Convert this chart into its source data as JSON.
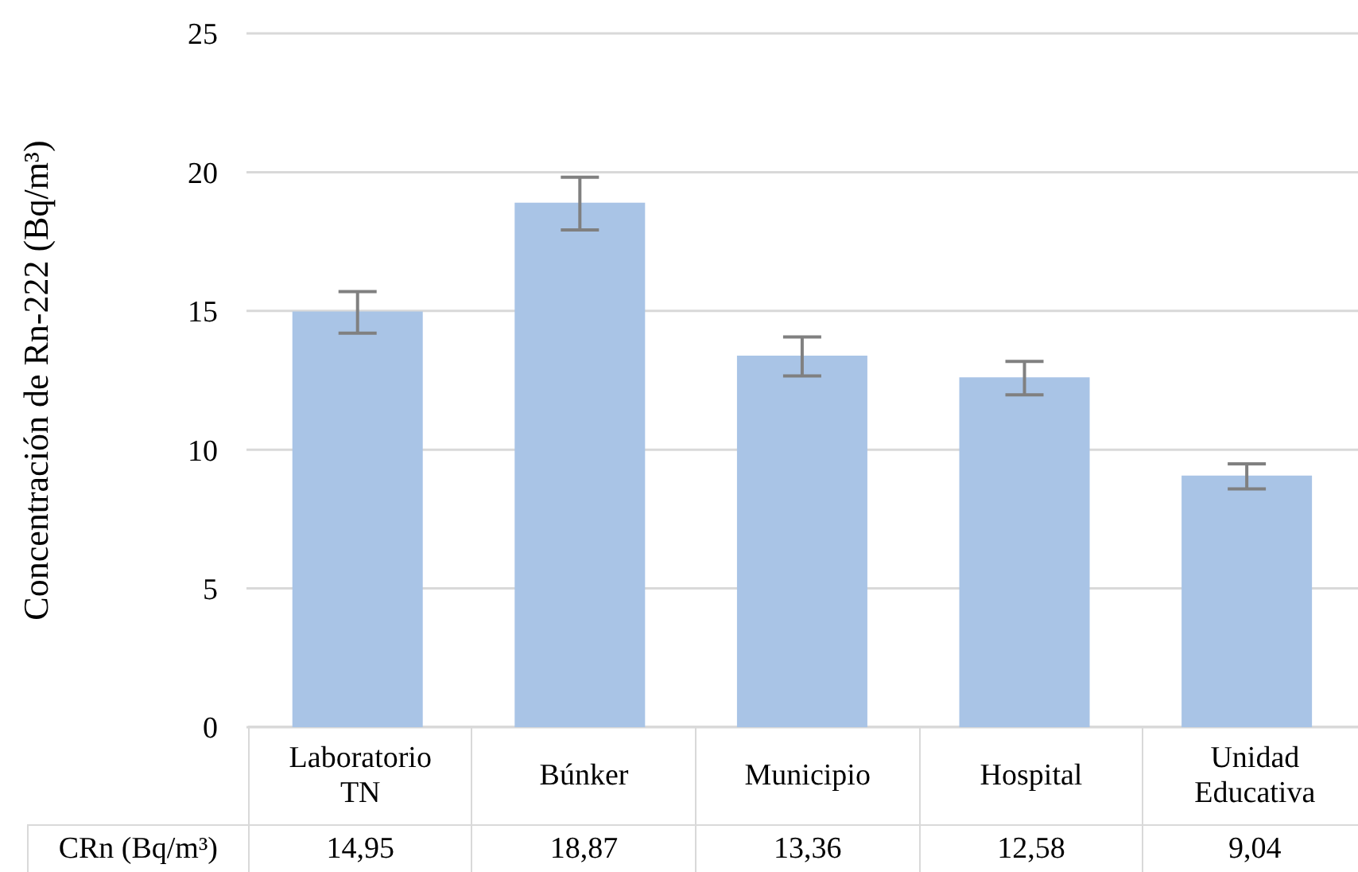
{
  "chart_data": {
    "type": "bar",
    "ylabel": "Concentración de Rn-222 (Bq/m³)",
    "categories": [
      "Laboratorio TN",
      "Búnker",
      "Municipio",
      "Hospital",
      "Unidad Educativa"
    ],
    "series": [
      {
        "name": "CRn (Bq/m³)",
        "color": "#a9c4e6",
        "values": [
          14.95,
          18.87,
          13.36,
          12.58,
          9.04
        ],
        "value_labels": [
          "14,95",
          "18,87",
          "13,36",
          "12,58",
          "9,04"
        ],
        "errors": [
          0.75,
          0.95,
          0.7,
          0.6,
          0.45
        ]
      }
    ],
    "ylim": [
      0,
      25
    ],
    "yticks": [
      0,
      5,
      10,
      15,
      20,
      25
    ],
    "grid": "y"
  }
}
